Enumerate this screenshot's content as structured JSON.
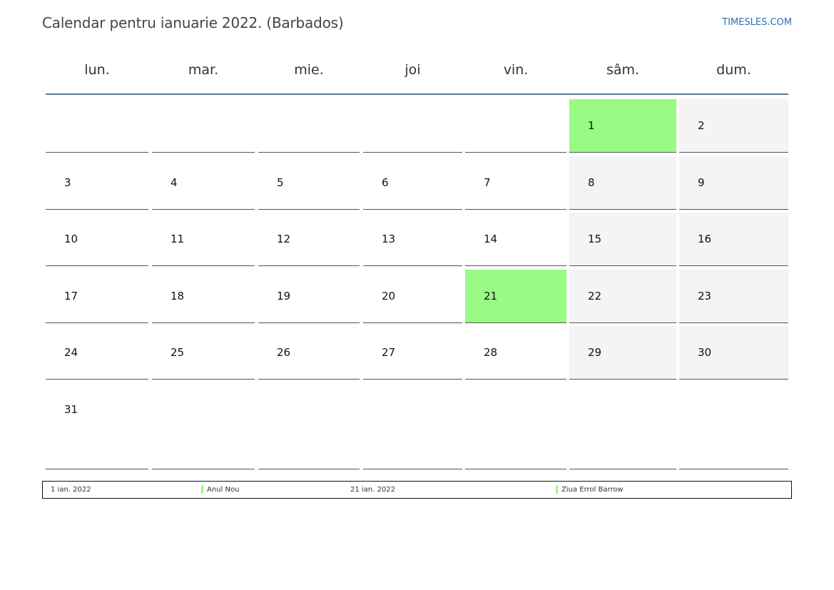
{
  "header": {
    "title": "Calendar pentru ianuarie 2022. (Barbados)",
    "brand": "TIMESLES.COM"
  },
  "colors": {
    "accent_line": "#5a7699",
    "holiday": "#98fb84",
    "weekend": "#f4f4f4",
    "brand": "#2e6fb0"
  },
  "weekdays": [
    "lun.",
    "mar.",
    "mie.",
    "joi",
    "vin.",
    "sâm.",
    "dum."
  ],
  "weeks": [
    [
      "",
      "",
      "",
      "",
      "",
      "1",
      "2"
    ],
    [
      "3",
      "4",
      "5",
      "6",
      "7",
      "8",
      "9"
    ],
    [
      "10",
      "11",
      "12",
      "13",
      "14",
      "15",
      "16"
    ],
    [
      "17",
      "18",
      "19",
      "20",
      "21",
      "22",
      "23"
    ],
    [
      "24",
      "25",
      "26",
      "27",
      "28",
      "29",
      "30"
    ],
    [
      "31",
      "",
      "",
      "",
      "",
      "",
      ""
    ]
  ],
  "holiday_days": [
    "1",
    "21"
  ],
  "weekend_columns": [
    5,
    6
  ],
  "legend": [
    {
      "date": "1 ian. 2022",
      "name": "Anul Nou"
    },
    {
      "date": "21 ian. 2022",
      "name": "Ziua Errol Barrow"
    }
  ]
}
